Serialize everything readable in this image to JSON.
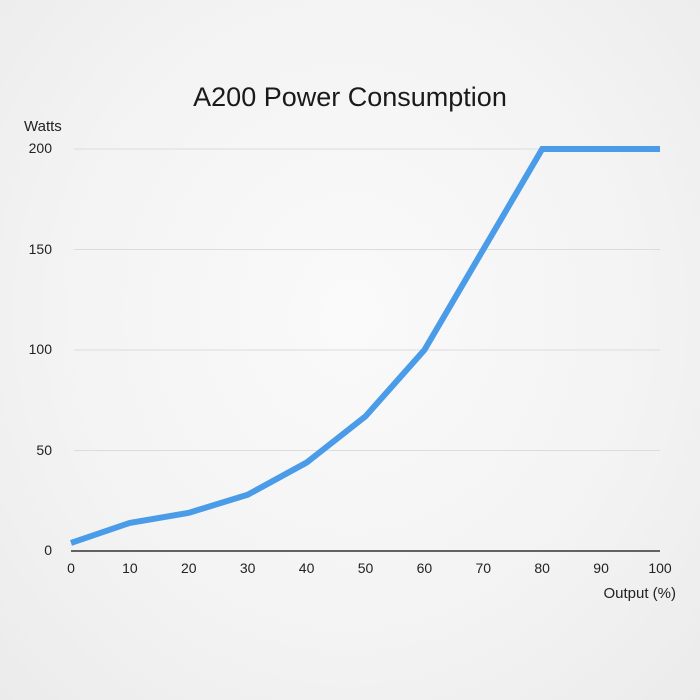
{
  "chart_data": {
    "type": "line",
    "title": "A200 Power Consumption",
    "xlabel": "Output (%)",
    "ylabel": "Watts",
    "x": [
      0,
      10,
      20,
      30,
      40,
      50,
      60,
      70,
      80,
      90,
      100
    ],
    "series": [
      {
        "name": "A200",
        "values": [
          4,
          14,
          19,
          28,
          44,
          67,
          100,
          150,
          200,
          200,
          200
        ],
        "color": "#4a9ce8"
      }
    ],
    "xlim": [
      0,
      100
    ],
    "ylim": [
      0,
      200
    ],
    "xticks": [
      "0",
      "10",
      "20",
      "30",
      "40",
      "50",
      "60",
      "70",
      "80",
      "90",
      "100"
    ],
    "yticks": [
      "0",
      "50",
      "100",
      "150",
      "200"
    ],
    "grid": "horizontal",
    "legend": "none"
  }
}
